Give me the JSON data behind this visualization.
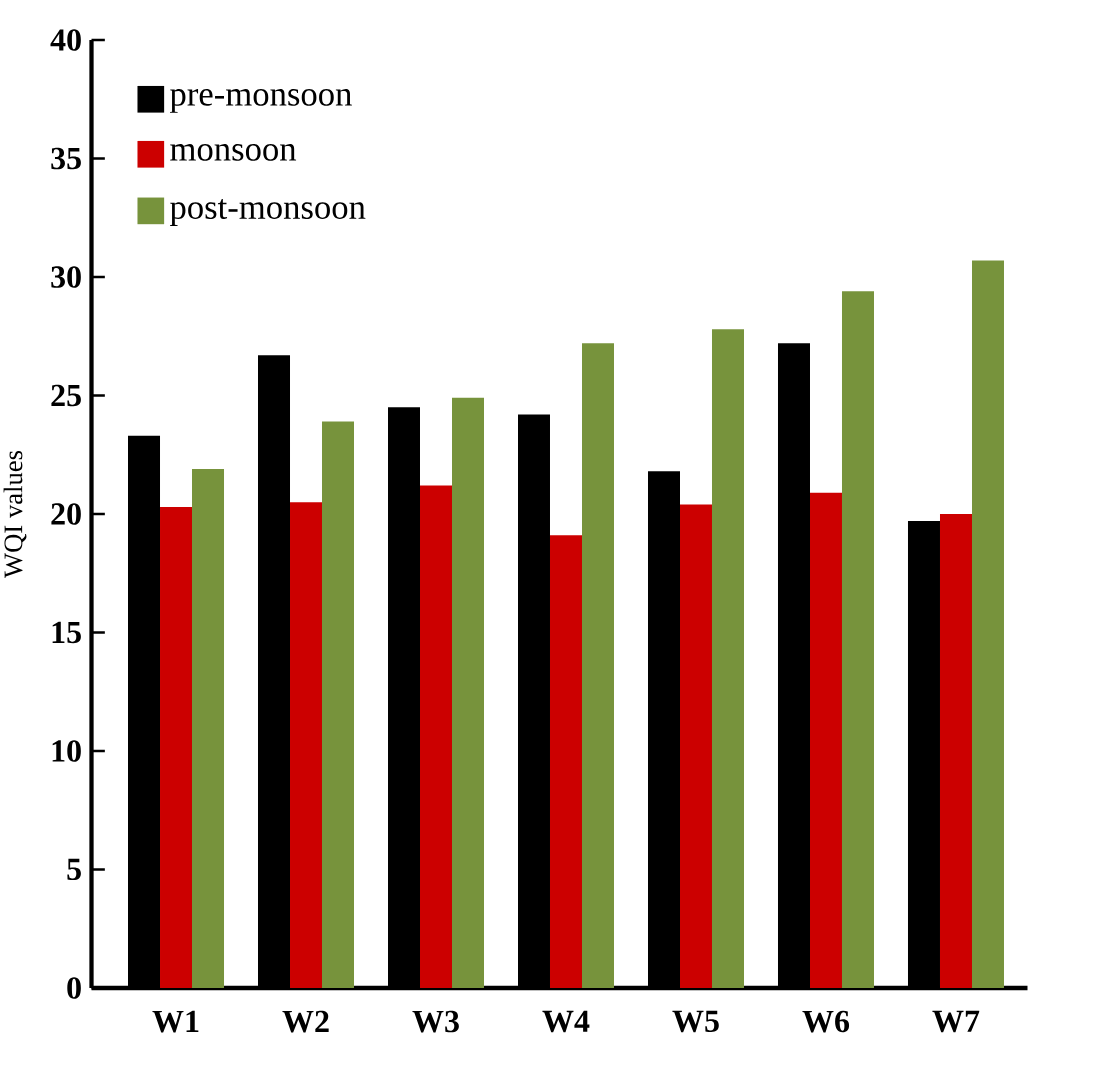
{
  "chart_data": {
    "type": "bar",
    "ylabel": "WQI values",
    "categories": [
      "W1",
      "W2",
      "W3",
      "W4",
      "W5",
      "W6",
      "W7"
    ],
    "series": [
      {
        "name": "pre-monsoon",
        "color": "#000000",
        "values": [
          23.3,
          26.7,
          24.5,
          24.2,
          21.8,
          27.2,
          19.7
        ]
      },
      {
        "name": "monsoon",
        "color": "#cc0000",
        "values": [
          20.3,
          20.5,
          21.2,
          19.1,
          20.4,
          20.9,
          20.0
        ]
      },
      {
        "name": "post-monsoon",
        "color": "#77933c",
        "values": [
          21.9,
          23.9,
          24.9,
          27.2,
          27.8,
          29.4,
          30.7
        ]
      }
    ],
    "ylim": [
      0,
      40
    ],
    "yticks": [
      0,
      5,
      10,
      15,
      20,
      25,
      30,
      35,
      40
    ],
    "legend": "top left",
    "grid": false
  }
}
